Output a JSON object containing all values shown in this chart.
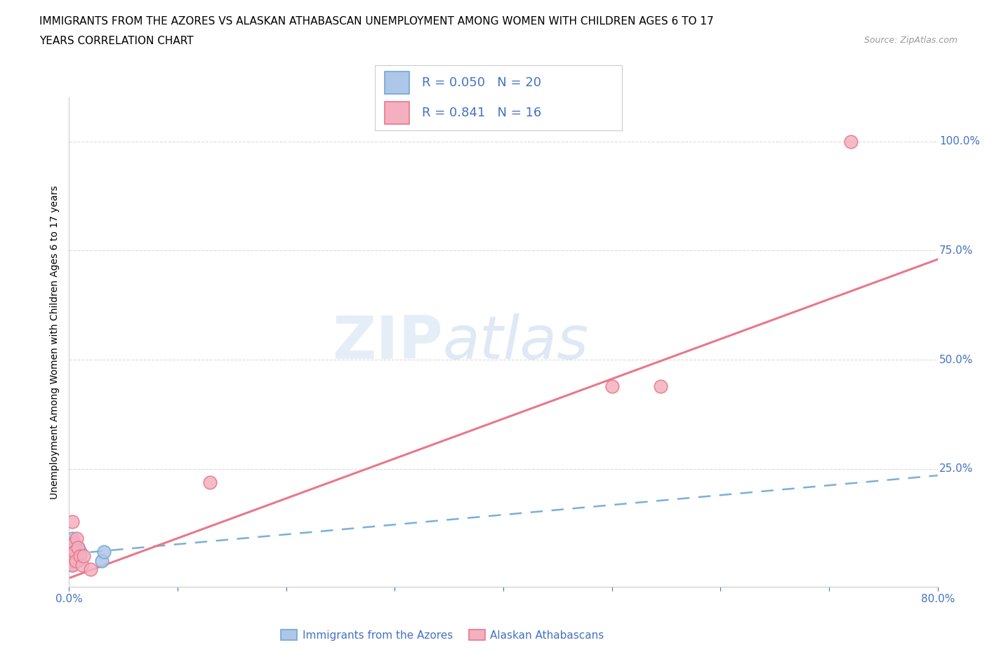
{
  "title_line1": "IMMIGRANTS FROM THE AZORES VS ALASKAN ATHABASCAN UNEMPLOYMENT AMONG WOMEN WITH CHILDREN AGES 6 TO 17",
  "title_line2": "YEARS CORRELATION CHART",
  "source": "Source: ZipAtlas.com",
  "watermark_zip": "ZIP",
  "watermark_atlas": "atlas",
  "ylabel": "Unemployment Among Women with Children Ages 6 to 17 years",
  "xlim": [
    0.0,
    0.8
  ],
  "ylim": [
    -0.02,
    1.1
  ],
  "xticks": [
    0.0,
    0.1,
    0.2,
    0.3,
    0.4,
    0.5,
    0.6,
    0.7,
    0.8
  ],
  "xtick_labels": [
    "0.0%",
    "",
    "",
    "",
    "",
    "",
    "",
    "",
    "80.0%"
  ],
  "ytick_labels": [
    "100.0%",
    "75.0%",
    "50.0%",
    "25.0%"
  ],
  "ytick_positions": [
    1.0,
    0.75,
    0.5,
    0.25
  ],
  "blue_R": 0.05,
  "blue_N": 20,
  "pink_R": 0.841,
  "pink_N": 16,
  "blue_color": "#aec6e8",
  "pink_color": "#f4afc0",
  "blue_edge_color": "#6fa8d4",
  "pink_edge_color": "#e8788a",
  "blue_line_color": "#7ab0d8",
  "pink_line_color": "#e8788a",
  "legend_text_color": "#4472c4",
  "blue_scatter_x": [
    0.002,
    0.002,
    0.002,
    0.003,
    0.003,
    0.003,
    0.003,
    0.004,
    0.004,
    0.005,
    0.005,
    0.006,
    0.006,
    0.007,
    0.008,
    0.008,
    0.009,
    0.01,
    0.03,
    0.032
  ],
  "blue_scatter_y": [
    0.04,
    0.06,
    0.08,
    0.05,
    0.07,
    0.03,
    0.09,
    0.04,
    0.06,
    0.05,
    0.07,
    0.04,
    0.06,
    0.05,
    0.04,
    0.07,
    0.05,
    0.06,
    0.04,
    0.06
  ],
  "pink_scatter_x": [
    0.002,
    0.003,
    0.003,
    0.004,
    0.005,
    0.006,
    0.007,
    0.008,
    0.01,
    0.012,
    0.013,
    0.02,
    0.13,
    0.5,
    0.545,
    0.72
  ],
  "pink_scatter_y": [
    0.05,
    0.03,
    0.13,
    0.08,
    0.06,
    0.04,
    0.09,
    0.07,
    0.05,
    0.03,
    0.05,
    0.02,
    0.22,
    0.44,
    0.44,
    1.0
  ],
  "blue_line_x": [
    0.0,
    0.8
  ],
  "blue_line_y": [
    0.055,
    0.235
  ],
  "pink_line_x": [
    0.0,
    0.8
  ],
  "pink_line_y": [
    0.0,
    0.73
  ],
  "background_color": "#ffffff",
  "grid_color": "#d8d8d8"
}
